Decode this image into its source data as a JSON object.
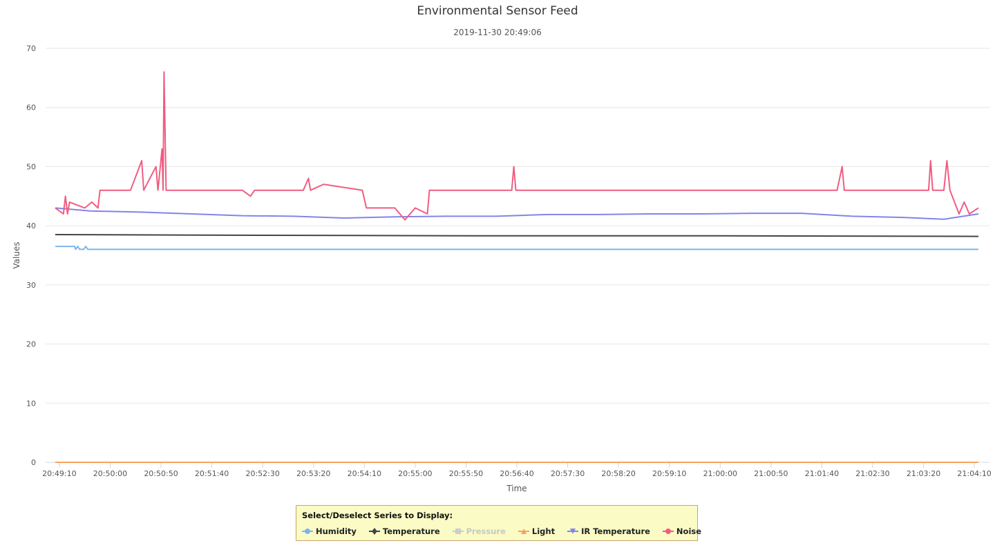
{
  "chart_data": {
    "type": "line",
    "title": "Environmental Sensor Feed",
    "subtitle": "2019-11-30 20:49:06",
    "xlabel": "Time",
    "ylabel": "Values",
    "ylim": [
      0,
      70
    ],
    "yticks": [
      0,
      10,
      20,
      30,
      40,
      50,
      60,
      70
    ],
    "xlim": [
      "20:49:06",
      "21:04:14"
    ],
    "xtick_labels": [
      "20:49:10",
      "20:50:00",
      "20:50:50",
      "20:51:40",
      "20:52:30",
      "20:53:20",
      "20:54:10",
      "20:55:00",
      "20:55:50",
      "20:56:40",
      "20:57:30",
      "20:58:20",
      "20:59:10",
      "21:00:00",
      "21:00:50",
      "21:01:40",
      "21:02:30",
      "21:03:20",
      "21:04:10"
    ],
    "grid": true,
    "legend_title": "Select/Deselect Series to Display:",
    "legend_position": "bottom",
    "series": [
      {
        "name": "Humidity",
        "color": "#7cb5ec",
        "symbol": "circle",
        "visible": true,
        "points": [
          [
            "20:49:06",
            36.5
          ],
          [
            "20:49:25",
            36.5
          ],
          [
            "20:49:26",
            36.0
          ],
          [
            "20:49:28",
            36.5
          ],
          [
            "20:49:30",
            36.0
          ],
          [
            "20:49:34",
            36.0
          ],
          [
            "20:49:36",
            36.5
          ],
          [
            "20:49:38",
            36.0
          ],
          [
            "20:50:00",
            36.0
          ],
          [
            "21:04:14",
            36.0
          ]
        ]
      },
      {
        "name": "Temperature",
        "color": "#434348",
        "symbol": "diamond",
        "visible": true,
        "points": [
          [
            "20:49:06",
            38.5
          ],
          [
            "20:52:00",
            38.4
          ],
          [
            "20:56:00",
            38.3
          ],
          [
            "21:00:00",
            38.3
          ],
          [
            "21:04:14",
            38.2
          ]
        ]
      },
      {
        "name": "Pressure",
        "color": "#cccccc",
        "symbol": "square",
        "visible": false,
        "points": []
      },
      {
        "name": "Light",
        "color": "#f7a35c",
        "symbol": "triangle",
        "visible": true,
        "points": [
          [
            "20:49:06",
            0
          ],
          [
            "21:04:14",
            0
          ]
        ]
      },
      {
        "name": "IR Temperature",
        "color": "#8085e9",
        "symbol": "triangle-down",
        "visible": true,
        "points": [
          [
            "20:49:06",
            43.0
          ],
          [
            "20:49:40",
            42.5
          ],
          [
            "20:50:30",
            42.3
          ],
          [
            "20:51:20",
            42.0
          ],
          [
            "20:52:10",
            41.7
          ],
          [
            "20:53:00",
            41.6
          ],
          [
            "20:53:50",
            41.3
          ],
          [
            "20:54:40",
            41.5
          ],
          [
            "20:55:30",
            41.6
          ],
          [
            "20:56:20",
            41.6
          ],
          [
            "20:57:10",
            41.9
          ],
          [
            "20:58:00",
            41.9
          ],
          [
            "20:58:50",
            42.0
          ],
          [
            "20:59:40",
            42.0
          ],
          [
            "21:00:30",
            42.1
          ],
          [
            "21:01:20",
            42.1
          ],
          [
            "21:02:10",
            41.6
          ],
          [
            "21:03:00",
            41.4
          ],
          [
            "21:03:40",
            41.1
          ],
          [
            "21:04:14",
            42.0
          ]
        ]
      },
      {
        "name": "Noise",
        "color": "#f15c80",
        "symbol": "circle",
        "visible": true,
        "points": [
          [
            "20:49:06",
            43
          ],
          [
            "20:49:14",
            42
          ],
          [
            "20:49:16",
            45
          ],
          [
            "20:49:18",
            42
          ],
          [
            "20:49:20",
            44
          ],
          [
            "20:49:35",
            43
          ],
          [
            "20:49:42",
            44
          ],
          [
            "20:49:48",
            43
          ],
          [
            "20:49:50",
            46
          ],
          [
            "20:50:20",
            46
          ],
          [
            "20:50:31",
            51
          ],
          [
            "20:50:33",
            46
          ],
          [
            "20:50:45",
            50
          ],
          [
            "20:50:47",
            46
          ],
          [
            "20:50:51",
            53
          ],
          [
            "20:50:52",
            46
          ],
          [
            "20:50:53",
            66
          ],
          [
            "20:50:55",
            46
          ],
          [
            "20:52:10",
            46
          ],
          [
            "20:52:18",
            45
          ],
          [
            "20:52:22",
            46
          ],
          [
            "20:53:10",
            46
          ],
          [
            "20:53:15",
            48
          ],
          [
            "20:53:17",
            46
          ],
          [
            "20:53:30",
            47
          ],
          [
            "20:54:08",
            46
          ],
          [
            "20:54:12",
            43
          ],
          [
            "20:54:40",
            43
          ],
          [
            "20:54:50",
            41
          ],
          [
            "20:55:00",
            43
          ],
          [
            "20:55:12",
            42
          ],
          [
            "20:55:14",
            46
          ],
          [
            "20:56:35",
            46
          ],
          [
            "20:56:37",
            50
          ],
          [
            "20:56:39",
            46
          ],
          [
            "21:01:55",
            46
          ],
          [
            "21:02:00",
            50
          ],
          [
            "21:02:02",
            46
          ],
          [
            "21:03:25",
            46
          ],
          [
            "21:03:27",
            51
          ],
          [
            "21:03:29",
            46
          ],
          [
            "21:03:40",
            46
          ],
          [
            "21:03:43",
            51
          ],
          [
            "21:03:46",
            46
          ],
          [
            "21:03:55",
            42
          ],
          [
            "21:04:00",
            44
          ],
          [
            "21:04:05",
            42
          ],
          [
            "21:04:14",
            43
          ]
        ]
      }
    ]
  }
}
